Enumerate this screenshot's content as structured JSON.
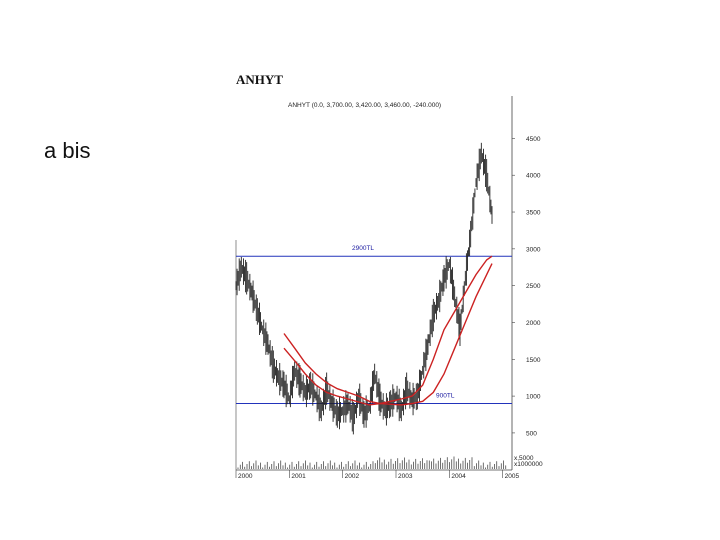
{
  "slide": {
    "bullet_text": "a bis"
  },
  "chart_data": {
    "type": "line",
    "title": "ANHYT",
    "subtitle": "ANHYT (0.0, 3,700.00, 3,420.00, 3,460.00, -240.000)",
    "y_ticks": [
      500,
      1000,
      1500,
      2000,
      2500,
      3000,
      3500,
      4000,
      4500
    ],
    "ylim": [
      200,
      4750
    ],
    "x_ticks": [
      "2000",
      "2001",
      "2002",
      "2003",
      "2004",
      "2005"
    ],
    "xlim": [
      2000.0,
      2005.1
    ],
    "volume_label": "x,5000",
    "volume_scale_label": "x1000000",
    "reference_lines": [
      {
        "label": "2900TL",
        "value": 2900,
        "color": "#2233bb"
      },
      {
        "label": "900TL",
        "value": 900,
        "color": "#2233bb"
      }
    ],
    "series": [
      {
        "kind": "price",
        "color": "#222222",
        "x": [
          2000.0,
          2000.1,
          2000.2,
          2000.3,
          2000.4,
          2000.5,
          2000.6,
          2000.7,
          2000.8,
          2000.9,
          2001.0,
          2001.1,
          2001.2,
          2001.3,
          2001.4,
          2001.5,
          2001.6,
          2001.7,
          2001.8,
          2001.9,
          2002.0,
          2002.1,
          2002.2,
          2002.3,
          2002.4,
          2002.5,
          2002.6,
          2002.7,
          2002.8,
          2002.9,
          2003.0,
          2003.1,
          2003.2,
          2003.3,
          2003.4,
          2003.5,
          2003.6,
          2003.7,
          2003.8,
          2003.9,
          2004.0,
          2004.1,
          2004.2,
          2004.3,
          2004.4,
          2004.5,
          2004.6,
          2004.7,
          2004.8
        ],
        "values": [
          2500,
          2750,
          2600,
          2400,
          2150,
          1900,
          1700,
          1400,
          1250,
          1150,
          950,
          1350,
          1200,
          1050,
          1150,
          1000,
          800,
          1100,
          900,
          750,
          800,
          900,
          700,
          1000,
          750,
          850,
          1300,
          950,
          800,
          900,
          1000,
          800,
          1100,
          950,
          1000,
          1350,
          1700,
          2100,
          2300,
          2600,
          2800,
          2350,
          1900,
          2600,
          3200,
          3900,
          4300,
          4000,
          3460
        ]
      },
      {
        "kind": "moving-average-short",
        "color": "#cc2222",
        "x": [
          2000.9,
          2001.1,
          2001.3,
          2001.5,
          2001.7,
          2001.9,
          2002.1,
          2002.3,
          2002.5,
          2002.7,
          2002.9,
          2003.1,
          2003.3,
          2003.5,
          2003.7,
          2003.9,
          2004.1,
          2004.3,
          2004.5,
          2004.7,
          2004.8
        ],
        "values": [
          1650,
          1480,
          1300,
          1150,
          1050,
          1000,
          960,
          920,
          880,
          900,
          930,
          960,
          1000,
          1150,
          1500,
          1900,
          2150,
          2400,
          2650,
          2850,
          2900
        ]
      },
      {
        "kind": "moving-average-long",
        "color": "#cc2222",
        "x": [
          2000.9,
          2001.1,
          2001.3,
          2001.5,
          2001.7,
          2001.9,
          2002.1,
          2002.3,
          2002.5,
          2002.7,
          2002.9,
          2003.1,
          2003.3,
          2003.5,
          2003.7,
          2003.9,
          2004.1,
          2004.3,
          2004.5,
          2004.7,
          2004.8
        ],
        "values": [
          1850,
          1650,
          1450,
          1300,
          1180,
          1100,
          1050,
          1000,
          930,
          900,
          890,
          880,
          900,
          930,
          1050,
          1300,
          1650,
          2000,
          2350,
          2650,
          2800
        ]
      }
    ],
    "grid": false
  }
}
